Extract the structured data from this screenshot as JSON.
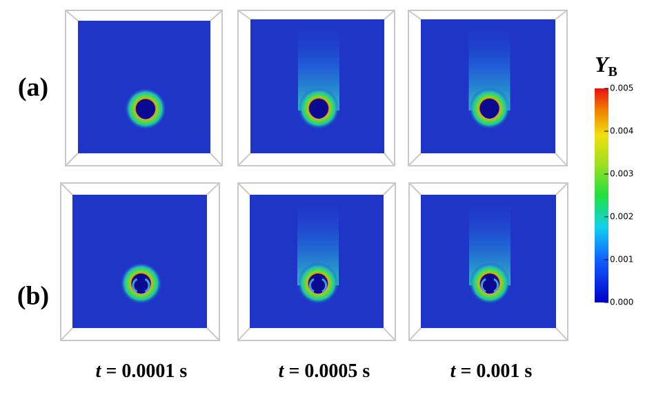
{
  "rows": [
    {
      "label": "(a)"
    },
    {
      "label": "(b)"
    }
  ],
  "columns": [
    {
      "symbol": "t",
      "text": "= 0.0001 s"
    },
    {
      "symbol": "t",
      "text": "= 0.0005 s"
    },
    {
      "symbol": "t",
      "text": "= 0.001 s"
    }
  ],
  "colorbar": {
    "symbol": "Y",
    "subscript": "B",
    "lim": [
      0,
      0.005
    ],
    "ticks": [
      {
        "value": 0,
        "label": "0.000"
      },
      0.001,
      0.002,
      0.003,
      0.004,
      0.005
    ]
  }
}
